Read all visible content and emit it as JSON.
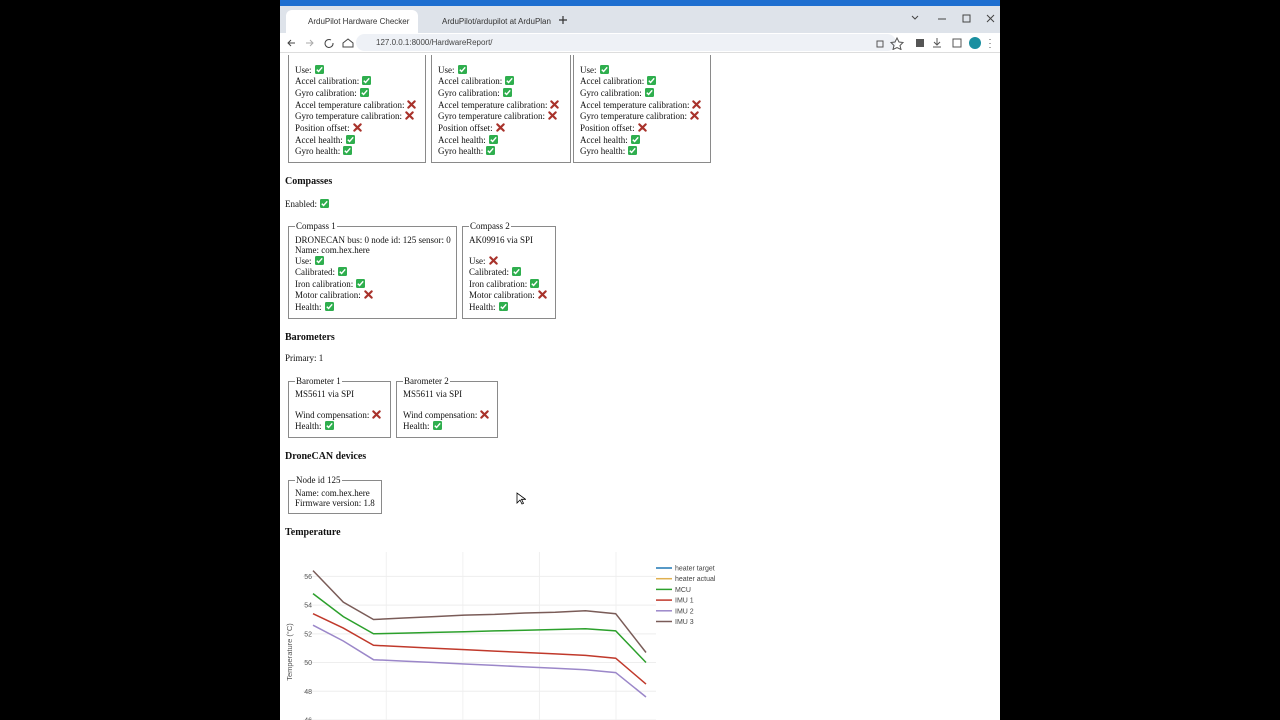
{
  "browser": {
    "tabs": [
      "ArduPilot Hardware Checker",
      "ArduPilot/ardupilot at ArduPlan"
    ],
    "url": "127.0.0.1:8000/HardwareReport/"
  },
  "imus": [
    {
      "rows": [
        {
          "label": "Use:",
          "ok": true
        },
        {
          "label": "Accel calibration:",
          "ok": true
        },
        {
          "label": "Gyro calibration:",
          "ok": true
        },
        {
          "label": "Accel temperature calibration:",
          "ok": false
        },
        {
          "label": "Gyro temperature calibration:",
          "ok": false
        },
        {
          "label": "Position offset:",
          "ok": false
        },
        {
          "label": "Accel health:",
          "ok": true
        },
        {
          "label": "Gyro health:",
          "ok": true
        }
      ]
    },
    {
      "rows": [
        {
          "label": "Use:",
          "ok": true
        },
        {
          "label": "Accel calibration:",
          "ok": true
        },
        {
          "label": "Gyro calibration:",
          "ok": true
        },
        {
          "label": "Accel temperature calibration:",
          "ok": false
        },
        {
          "label": "Gyro temperature calibration:",
          "ok": false
        },
        {
          "label": "Position offset:",
          "ok": false
        },
        {
          "label": "Accel health:",
          "ok": true
        },
        {
          "label": "Gyro health:",
          "ok": true
        }
      ]
    },
    {
      "rows": [
        {
          "label": "Use:",
          "ok": true
        },
        {
          "label": "Accel calibration:",
          "ok": true
        },
        {
          "label": "Gyro calibration:",
          "ok": true
        },
        {
          "label": "Accel temperature calibration:",
          "ok": false
        },
        {
          "label": "Gyro temperature calibration:",
          "ok": false
        },
        {
          "label": "Position offset:",
          "ok": false
        },
        {
          "label": "Accel health:",
          "ok": true
        },
        {
          "label": "Gyro health:",
          "ok": true
        }
      ]
    }
  ],
  "compasses": {
    "title": "Compasses",
    "enabled": {
      "label": "Enabled:",
      "ok": true
    },
    "boxes": [
      {
        "legend": "Compass 1",
        "lines": [
          "DRONECAN bus: 0 node id: 125 sensor: 0",
          "Name: com.hex.here"
        ],
        "rows": [
          {
            "label": "Use:",
            "ok": true
          },
          {
            "label": "Calibrated:",
            "ok": true
          },
          {
            "label": "Iron calibration:",
            "ok": true
          },
          {
            "label": "Motor calibration:",
            "ok": false
          },
          {
            "label": "Health:",
            "ok": true
          }
        ]
      },
      {
        "legend": "Compass 2",
        "lines": [
          "AK09916 via SPI"
        ],
        "rows": [
          {
            "label": "Use:",
            "ok": false
          },
          {
            "label": "Calibrated:",
            "ok": true
          },
          {
            "label": "Iron calibration:",
            "ok": true
          },
          {
            "label": "Motor calibration:",
            "ok": false
          },
          {
            "label": "Health:",
            "ok": true
          }
        ]
      }
    ]
  },
  "barometers": {
    "title": "Barometers",
    "primary": "Primary: 1",
    "boxes": [
      {
        "legend": "Barometer 1",
        "lines": [
          "MS5611 via SPI"
        ],
        "rows": [
          {
            "label": "Wind compensation:",
            "ok": false
          },
          {
            "label": "Health:",
            "ok": true
          }
        ]
      },
      {
        "legend": "Barometer 2",
        "lines": [
          "MS5611 via SPI"
        ],
        "rows": [
          {
            "label": "Wind compensation:",
            "ok": false
          },
          {
            "label": "Health:",
            "ok": true
          }
        ]
      }
    ]
  },
  "dronecan": {
    "title": "DroneCAN devices",
    "boxes": [
      {
        "legend": "Node id 125",
        "lines": [
          "Name: com.hex.here",
          "Firmware version: 1.8"
        ]
      }
    ]
  },
  "temperature": {
    "title": "Temperature"
  },
  "chart_data": {
    "type": "line",
    "y_label": "Temperature (°C)",
    "categories": [
      null,
      null,
      null,
      null,
      null,
      null,
      null,
      null,
      null,
      null,
      null,
      null
    ],
    "ylim": [
      46,
      57
    ],
    "yticks": [
      46,
      48,
      50,
      52,
      54,
      56
    ],
    "grid": true,
    "series": [
      {
        "name": "heater target",
        "color": "#1f77b4",
        "values": [
          null,
          null,
          null,
          null,
          null,
          null,
          null,
          null,
          null,
          null,
          null,
          null
        ]
      },
      {
        "name": "heater actual",
        "color": "#e0b050",
        "values": [
          null,
          null,
          null,
          null,
          null,
          null,
          null,
          null,
          null,
          null,
          null,
          null
        ]
      },
      {
        "name": "MCU",
        "color": "#2ca02c",
        "values": [
          54.8,
          53.2,
          52.0,
          52.05,
          52.1,
          52.15,
          52.2,
          52.25,
          52.3,
          52.35,
          52.2,
          50.0
        ]
      },
      {
        "name": "IMU 1",
        "color": "#c0392b",
        "values": [
          53.4,
          52.4,
          51.2,
          51.1,
          51.0,
          50.9,
          50.8,
          50.7,
          50.6,
          50.5,
          50.3,
          48.5
        ]
      },
      {
        "name": "IMU 2",
        "color": "#9b87c9",
        "values": [
          52.6,
          51.5,
          50.2,
          50.1,
          50.0,
          49.9,
          49.8,
          49.7,
          49.6,
          49.5,
          49.3,
          47.6
        ]
      },
      {
        "name": "IMU 3",
        "color": "#7a5c58",
        "values": [
          56.4,
          54.2,
          53.0,
          53.1,
          53.2,
          53.3,
          53.35,
          53.45,
          53.5,
          53.6,
          53.4,
          50.7
        ]
      }
    ]
  }
}
